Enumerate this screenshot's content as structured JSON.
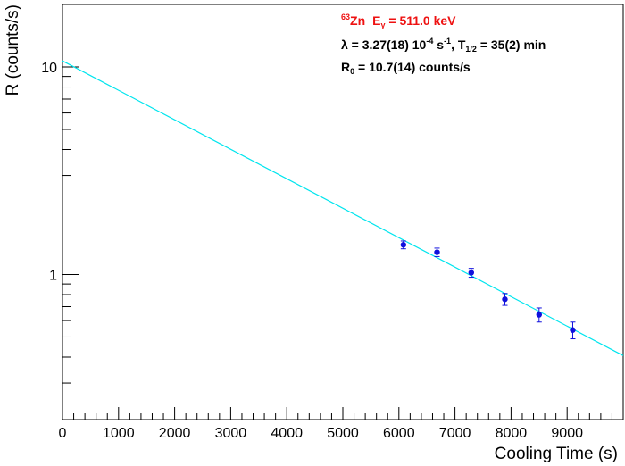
{
  "colors": {
    "fit_line": "#00e5ee",
    "points": "#1010dd",
    "title_red": "#ee1111",
    "axis": "#000000"
  },
  "annotation": {
    "isotope_mass": "63",
    "isotope_symbol": "Zn",
    "energy_prefix": "E",
    "energy_sub": "γ",
    "energy_value": " = 511.0 keV",
    "lambda_prefix": "λ = 3.27(18) 10",
    "lambda_exp": "-4",
    "lambda_unit": " s",
    "lambda_unit_exp": "-1",
    "half_prefix": ", T",
    "half_sub": "1/2",
    "half_value": " = 35(2) min",
    "r0_prefix": "R",
    "r0_sub": "0",
    "r0_value": " = 10.7(14) counts/s"
  },
  "chart_data": {
    "type": "scatter",
    "xlabel": "Cooling Time (s)",
    "ylabel": "R (counts/s)",
    "xlim": [
      0,
      10000
    ],
    "ylim": [
      0.2,
      20
    ],
    "yscale": "log",
    "grid": false,
    "x_ticks": [
      0,
      1000,
      2000,
      3000,
      4000,
      5000,
      6000,
      7000,
      8000,
      9000
    ],
    "y_ticks": [
      {
        "value": 1,
        "label": "1"
      },
      {
        "value": 10,
        "label": "10"
      }
    ],
    "points": [
      {
        "x": 6080,
        "y": 1.39,
        "err": 0.06
      },
      {
        "x": 6680,
        "y": 1.28,
        "err": 0.06
      },
      {
        "x": 7290,
        "y": 1.02,
        "err": 0.05
      },
      {
        "x": 7890,
        "y": 0.76,
        "err": 0.05
      },
      {
        "x": 8500,
        "y": 0.64,
        "err": 0.05
      },
      {
        "x": 9100,
        "y": 0.54,
        "err": 0.05
      }
    ],
    "fit": {
      "model": "exponential",
      "R0": 10.7,
      "lambda": 0.000327
    }
  }
}
